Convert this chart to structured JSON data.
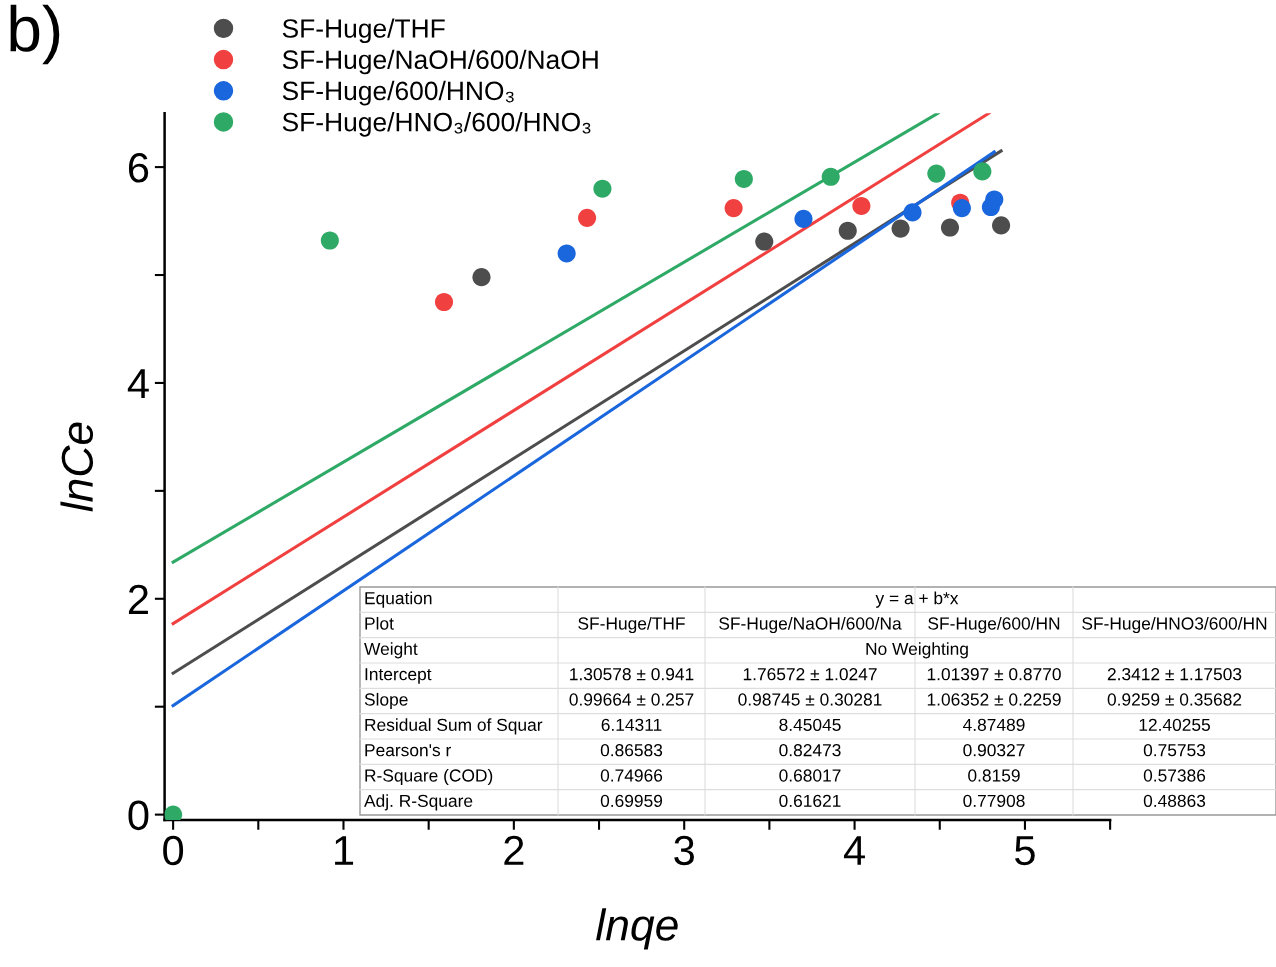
{
  "chart_data": {
    "type": "scatter",
    "xlabel": "lnqe",
    "ylabel": "lnCe",
    "xlim": [
      -0.05,
      5.5
    ],
    "ylim": [
      -0.05,
      6.5
    ],
    "xticks": [
      0,
      {
        "value": 0.5,
        "label": null
      },
      1,
      {
        "value": 1.5,
        "label": null
      },
      2,
      {
        "value": 2.5,
        "label": null
      },
      3,
      {
        "value": 3.5,
        "label": null
      },
      4,
      {
        "value": 4.5,
        "label": null
      },
      5,
      {
        "value": 5.5,
        "label": null
      }
    ],
    "yticks": [
      0,
      {
        "value": 1,
        "label": null
      },
      2,
      {
        "value": 3,
        "label": null
      },
      4,
      {
        "value": 5,
        "label": null
      },
      6
    ],
    "grid": false,
    "legend": "top left",
    "marker": "circle",
    "series": [
      {
        "name": "SF-Huge/THF",
        "color": "#4d4d4d",
        "x": [
          1.81,
          3.47,
          3.96,
          4.27,
          4.56,
          4.86
        ],
        "values": [
          4.98,
          5.31,
          5.41,
          5.43,
          5.44,
          5.46
        ]
      },
      {
        "name": "SF-Huge/NaOH/600/NaOH",
        "color": "#f04040",
        "x": [
          1.59,
          2.43,
          3.29,
          4.04,
          4.62
        ],
        "values": [
          4.75,
          5.53,
          5.62,
          5.64,
          5.67
        ]
      },
      {
        "name": "SF-Huge/600/HNO₃",
        "color": "#1a66dd",
        "x": [
          2.31,
          3.7,
          4.34,
          4.63,
          4.8,
          4.82
        ],
        "values": [
          5.2,
          5.52,
          5.58,
          5.62,
          5.63,
          5.7
        ]
      },
      {
        "name": "SF-Huge/HNO₃/600/HNO₃",
        "color": "#2eaa66",
        "x": [
          0,
          0.92,
          2.52,
          3.35,
          3.86,
          4.48,
          4.75
        ],
        "values": [
          0,
          5.32,
          5.8,
          5.89,
          5.91,
          5.94,
          5.96
        ]
      },
      {
        "type": "line",
        "marker": "none",
        "color": "#4d4d4d",
        "x": [
          0,
          4.86
        ],
        "values": [
          1.31,
          6.15
        ]
      },
      {
        "type": "line",
        "marker": "none",
        "color": "#f04040",
        "x": [
          0,
          4.79
        ],
        "values": [
          1.77,
          6.5
        ]
      },
      {
        "type": "line",
        "marker": "none",
        "color": "#1a66dd",
        "x": [
          0,
          4.82
        ],
        "values": [
          1.01,
          6.14
        ]
      },
      {
        "type": "line",
        "marker": "none",
        "color": "#2eaa66",
        "x": [
          0,
          4.49
        ],
        "values": [
          2.34,
          6.5
        ]
      }
    ],
    "annotations": [
      "b)",
      "Equation\ty = a + b*x",
      "Plot\tSF-Huge/THF\tSF-Huge/NaOH/600/Na\tSF-Huge/600/HN\tSF-Huge/HNO3/600/HN",
      "Weight\tNo Weighting",
      "Intercept\t1.30578 ± 0.941\t1.76572 ± 1.0247\t1.01397 ± 0.8770\t2.3412 ± 1.17503",
      "Slope\t0.99664 ± 0.257\t0.98745 ± 0.30281\t1.06352 ± 0.2259\t0.9259 ± 0.35682",
      "Residual Sum of Squar\t6.14311\t8.45045\t4.87489\t12.40255",
      "Pearson's r\t0.86583\t0.82473\t0.90327\t0.75753",
      "R-Square (COD)\t0.74966\t0.68017\t0.8159\t0.57386",
      "Adj. R-Square\t0.69959\t0.61621\t0.77908\t0.48863"
    ]
  }
}
